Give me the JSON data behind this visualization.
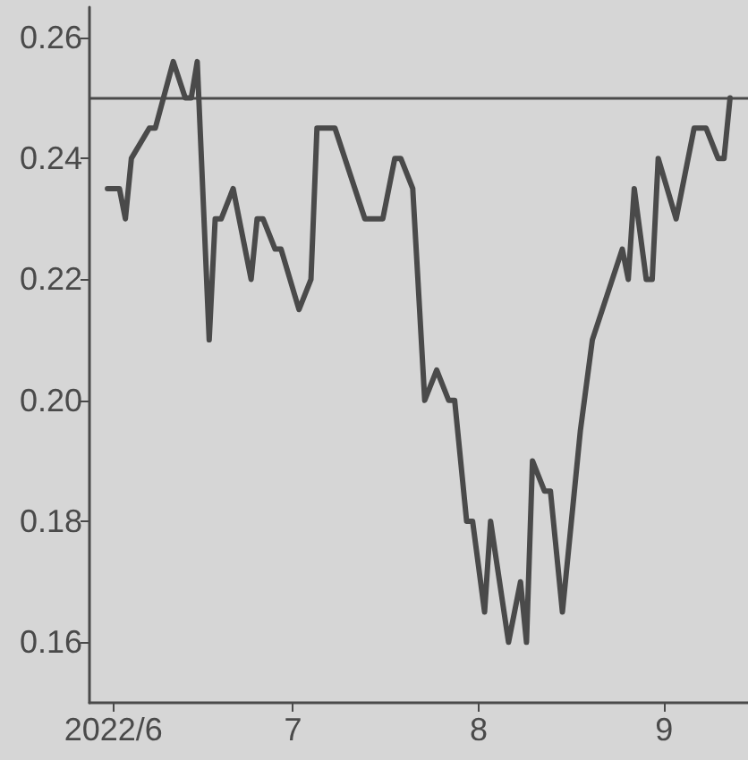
{
  "chart_data": {
    "type": "line",
    "x": [
      "2022-05-31",
      "2022-06-02",
      "2022-06-03",
      "2022-06-04",
      "2022-06-07",
      "2022-06-08",
      "2022-06-11",
      "2022-06-13",
      "2022-06-14",
      "2022-06-15",
      "2022-06-17",
      "2022-06-18",
      "2022-06-19",
      "2022-06-21",
      "2022-06-24",
      "2022-06-25",
      "2022-06-26",
      "2022-06-28",
      "2022-06-29",
      "2022-07-02",
      "2022-07-04",
      "2022-07-05",
      "2022-07-08",
      "2022-07-13",
      "2022-07-16",
      "2022-07-18",
      "2022-07-19",
      "2022-07-21",
      "2022-07-23",
      "2022-07-25",
      "2022-07-27",
      "2022-07-28",
      "2022-07-30",
      "2022-07-31",
      "2022-08-02",
      "2022-08-03",
      "2022-08-06",
      "2022-08-08",
      "2022-08-09",
      "2022-08-10",
      "2022-08-12",
      "2022-08-13",
      "2022-08-15",
      "2022-08-18",
      "2022-08-20",
      "2022-08-25",
      "2022-08-26",
      "2022-08-27",
      "2022-08-29",
      "2022-08-30",
      "2022-08-31",
      "2022-09-03",
      "2022-09-04",
      "2022-09-06",
      "2022-09-08",
      "2022-09-10",
      "2022-09-11",
      "2022-09-12"
    ],
    "series": [
      {
        "color": "#4a4a4a",
        "values": [
          0.235,
          0.235,
          0.23,
          0.24,
          0.245,
          0.245,
          0.256,
          0.25,
          0.25,
          0.256,
          0.21,
          0.23,
          0.23,
          0.235,
          0.22,
          0.23,
          0.23,
          0.225,
          0.225,
          0.215,
          0.22,
          0.245,
          0.245,
          0.23,
          0.23,
          0.24,
          0.24,
          0.235,
          0.2,
          0.205,
          0.2,
          0.2,
          0.18,
          0.18,
          0.165,
          0.18,
          0.16,
          0.17,
          0.16,
          0.19,
          0.185,
          0.185,
          0.165,
          0.195,
          0.21,
          0.225,
          0.22,
          0.235,
          0.22,
          0.22,
          0.24,
          0.23,
          0.235,
          0.245,
          0.245,
          0.24,
          0.24,
          0.25
        ]
      }
    ],
    "xlim": [
      "2022-05-28",
      "2022-09-15"
    ],
    "xticks": [
      {
        "value": "2022-06-01",
        "label": "2022/6"
      },
      {
        "value": "2022-07-01",
        "label": "7"
      },
      {
        "value": "2022-08-01",
        "label": "8"
      },
      {
        "value": "2022-09-01",
        "label": "9"
      }
    ],
    "ylim": [
      0.15,
      0.265
    ],
    "yticks": [
      0.16,
      0.18,
      {
        "value": 0.2,
        "label": "0.20"
      },
      0.22,
      0.24,
      0.26
    ],
    "ref_lines": [
      {
        "axis": "y",
        "value": 0.25,
        "color": "#4a4a4a"
      }
    ],
    "grid": false,
    "marker": "none",
    "line_style": "solid"
  }
}
